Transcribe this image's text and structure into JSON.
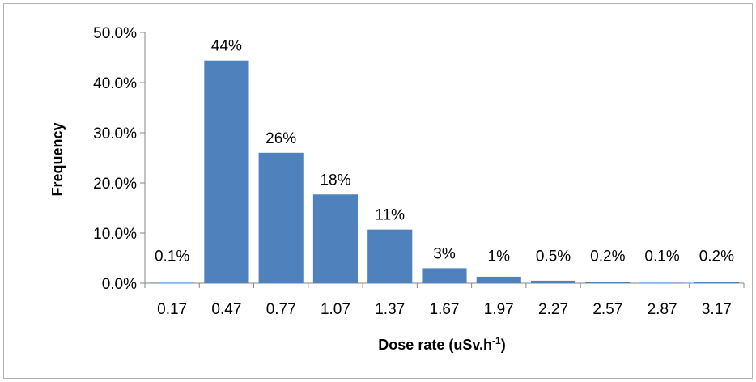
{
  "chart_data": {
    "type": "bar",
    "title": "",
    "xlabel_main": "Dose rate (uSv.h",
    "xlabel_sup": "-1",
    "xlabel_end": ")",
    "ylabel": "Frequency",
    "categories": [
      "0.17",
      "0.47",
      "0.77",
      "1.07",
      "1.37",
      "1.67",
      "1.97",
      "2.27",
      "2.57",
      "2.87",
      "3.17"
    ],
    "values": [
      0.1,
      44.4,
      26.0,
      17.7,
      10.7,
      3.0,
      1.3,
      0.5,
      0.2,
      0.1,
      0.2
    ],
    "data_labels": [
      "0.1%",
      "44%",
      "26%",
      "18%",
      "11%",
      "3%",
      "1%",
      "0.5%",
      "0.2%",
      "0.1%",
      "0.2%"
    ],
    "yticks": [
      "0.0%",
      "10.0%",
      "20.0%",
      "30.0%",
      "40.0%",
      "50.0%"
    ],
    "ytick_values": [
      0,
      10,
      20,
      30,
      40,
      50
    ],
    "ylim": [
      0,
      50
    ],
    "grid": false,
    "legend": "none",
    "bar_color": "#4f81bd",
    "axis_color": "#868686"
  }
}
